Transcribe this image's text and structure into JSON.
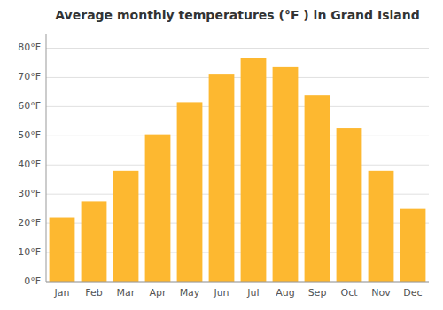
{
  "chart_data": {
    "type": "bar",
    "title": "Average monthly temperatures (°F ) in Grand Island",
    "categories": [
      "Jan",
      "Feb",
      "Mar",
      "Apr",
      "May",
      "Jun",
      "Jul",
      "Aug",
      "Sep",
      "Oct",
      "Nov",
      "Dec"
    ],
    "values": [
      22,
      27.5,
      38,
      50.5,
      61.5,
      71,
      76.5,
      73.5,
      64,
      52.5,
      38,
      25
    ],
    "color": "#FDB830",
    "ylim": [
      0,
      85
    ],
    "yticks": [
      {
        "value": 0,
        "label": "0°F"
      },
      {
        "value": 10,
        "label": "10°F"
      },
      {
        "value": 20,
        "label": "20°F"
      },
      {
        "value": 30,
        "label": "30°F"
      },
      {
        "value": 40,
        "label": "40°F"
      },
      {
        "value": 50,
        "label": "50°F"
      },
      {
        "value": 60,
        "label": "60°F"
      },
      {
        "value": 70,
        "label": "70°F"
      },
      {
        "value": 80,
        "label": "80°F"
      }
    ],
    "grid": true
  }
}
